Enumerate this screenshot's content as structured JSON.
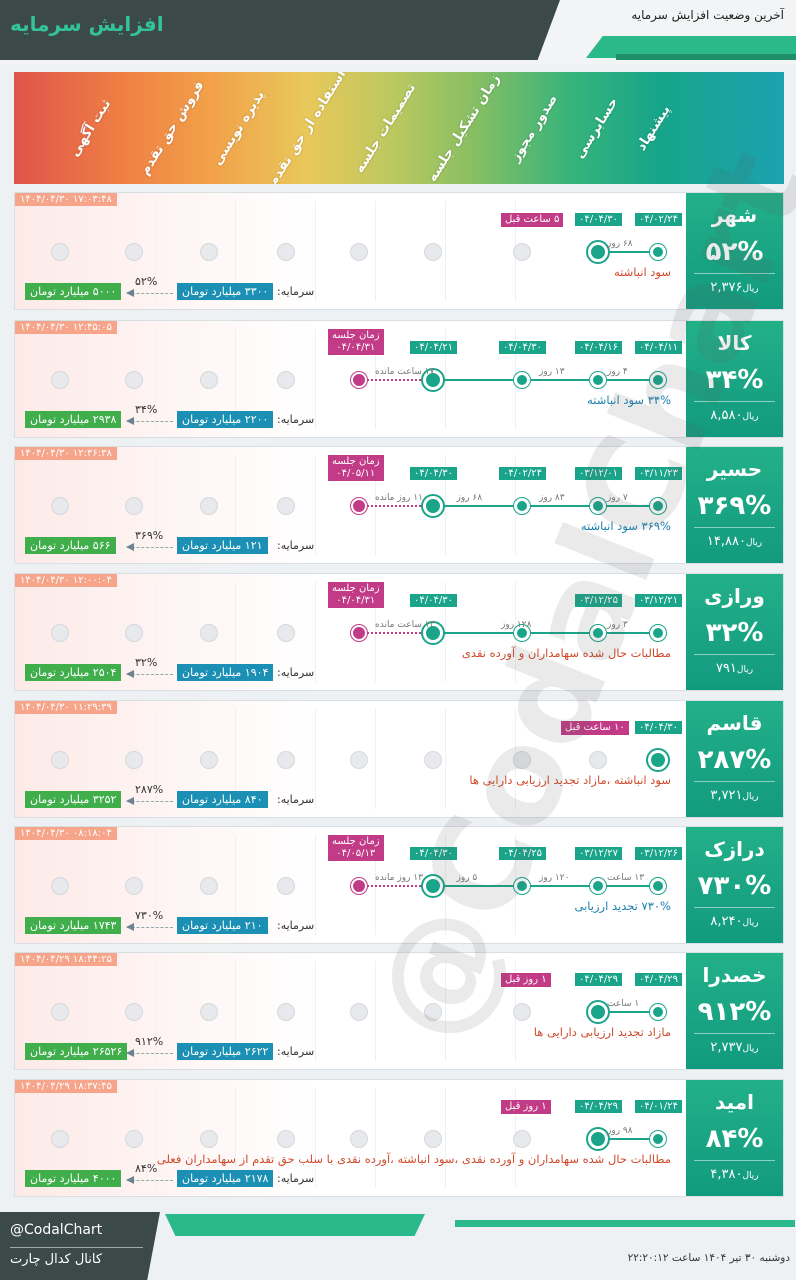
{
  "header": {
    "title": "افزایش سرمایه",
    "subtitle": "آخرین وضعیت افزایش سرمایه"
  },
  "stages": [
    "پیشنهاد",
    "حسابرسی",
    "صدور مجوز",
    "زمان تشکیل جلسه",
    "تصمیمات جلسه",
    "استفاده از حق تقدم",
    "پذیره نویسی",
    "فروش حق تقدم",
    "ثبت آگهی"
  ],
  "capital_prefix": "سرمایه:",
  "session_label": "زمان جلسه",
  "cards": [
    {
      "symbol": "شهر",
      "percent": "۵۲%",
      "price": "۲,۳۷۶",
      "price_unit": "ریال",
      "timestamp": "۱۴۰۴/۰۴/۳۰ ۱۷:۰۳:۴۸",
      "dates": [
        "۰۴/۰۲/۲۴",
        "۰۴/۰۴/۳۰"
      ],
      "days": [
        "۶۸ روز"
      ],
      "tag": "۵ ساعت قبل",
      "desc": "سود انباشته",
      "capital": "۳۳۰۰ میلیارد تومان",
      "new_capital": "۵۰۰۰ میلیارد تومان",
      "pct_small": "۵۲%"
    },
    {
      "symbol": "کالا",
      "percent": "۳۴%",
      "price": "۸,۵۸۰",
      "price_unit": "ریال",
      "timestamp": "۱۴۰۴/۰۴/۳۰ ۱۲:۴۵:۰۵",
      "dates": [
        "۰۴/۰۴/۱۱",
        "۰۴/۰۴/۱۶",
        "۰۴/۰۴/۳۰",
        "۰۴/۰۴/۲۱"
      ],
      "days": [
        "۴ روز",
        "۱۳ روز",
        "۱۷ ساعت مانده"
      ],
      "session": "۰۴/۰۴/۳۱",
      "desc": "۳۴% سود انباشته",
      "capital": "۲۲۰۰ میلیارد تومان",
      "new_capital": "۲۹۳۸ میلیارد تومان",
      "pct_small": "۳۴%"
    },
    {
      "symbol": "حسیر",
      "percent": "۳۶۹%",
      "price": "۱۴,۸۸۰",
      "price_unit": "ریال",
      "timestamp": "۱۴۰۴/۰۴/۳۰ ۱۲:۳۶:۳۸",
      "dates": [
        "۰۳/۱۱/۲۳",
        "۰۳/۱۲/۰۱",
        "۰۴/۰۲/۲۴",
        "۰۴/۰۴/۳۰"
      ],
      "days": [
        "۷ روز",
        "۸۳ روز",
        "۶۸ روز",
        "۱۱ روز مانده"
      ],
      "session": "۰۴/۰۵/۱۱",
      "desc": "۳۶۹% سود انباشته",
      "capital": "۱۲۱ میلیارد تومان",
      "new_capital": "۵۶۶ میلیارد تومان",
      "pct_small": "۳۶۹%"
    },
    {
      "symbol": "ورازی",
      "percent": "۳۲%",
      "price": "۷۹۱",
      "price_unit": "ریال",
      "timestamp": "۱۴۰۴/۰۴/۳۰ ۱۲:۰۰:۰۴",
      "dates": [
        "۰۳/۱۲/۲۱",
        "۰۳/۱۲/۲۵",
        "۰۴/۰۴/۳۰"
      ],
      "days": [
        "۳ روز",
        "۱۲۸ روز",
        "۱۳ ساعت مانده"
      ],
      "session": "۰۴/۰۴/۳۱",
      "desc": "مطالبات حال شده سهامداران و آورده نقدی",
      "capital": "۱۹۰۴ میلیارد تومان",
      "new_capital": "۲۵۰۴ میلیارد تومان",
      "pct_small": "۳۲%"
    },
    {
      "symbol": "قاسم",
      "percent": "۲۸۷%",
      "price": "۳,۷۲۱",
      "price_unit": "ریال",
      "timestamp": "۱۴۰۴/۰۴/۳۰ ۱۱:۲۹:۳۹",
      "dates": [
        "۰۴/۰۴/۳۰"
      ],
      "days": [],
      "tag": "۱۰ ساعت قبل",
      "desc": "سود انباشته ،مازاد تجدید ارزیابی دارایی ها",
      "capital": "۸۴۰ میلیارد تومان",
      "new_capital": "۳۲۵۲ میلیارد تومان",
      "pct_small": "۲۸۷%"
    },
    {
      "symbol": "درازک",
      "percent": "۷۳۰%",
      "price": "۸,۲۴۰",
      "price_unit": "ریال",
      "timestamp": "۱۴۰۴/۰۴/۳۰ ۰۸:۱۸:۰۴",
      "dates": [
        "۰۳/۱۲/۲۶",
        "۰۳/۱۲/۲۷",
        "۰۴/۰۴/۲۵",
        "۰۴/۰۴/۳۰"
      ],
      "days": [
        "۱۳ ساعت",
        "۱۲۰ روز",
        "۵ روز",
        "۱۳ روز مانده"
      ],
      "session": "۰۴/۰۵/۱۳",
      "desc": "۷۳۰% تجدید ارزیابی",
      "capital": "۲۱۰ میلیارد تومان",
      "new_capital": "۱۷۴۳ میلیارد تومان",
      "pct_small": "۷۳۰%"
    },
    {
      "symbol": "خصدرا",
      "percent": "۹۱۲%",
      "price": "۲,۷۳۷",
      "price_unit": "ریال",
      "timestamp": "۱۴۰۴/۰۴/۲۹ ۱۸:۴۴:۲۵",
      "dates": [
        "۰۴/۰۴/۲۹",
        "۰۴/۰۴/۲۹"
      ],
      "days": [
        "۱ ساعت"
      ],
      "tag": "۱ روز قبل",
      "desc": "مازاد تجدید ارزیابی دارایی ها",
      "capital": "۲۶۲۲ میلیارد تومان",
      "new_capital": "۲۶۵۲۶ میلیارد تومان",
      "pct_small": "۹۱۲%"
    },
    {
      "symbol": "امید",
      "percent": "۸۴%",
      "price": "۴,۳۸۰",
      "price_unit": "ریال",
      "timestamp": "۱۴۰۴/۰۴/۲۹ ۱۸:۳۷:۴۵",
      "dates": [
        "۰۴/۰۱/۲۴",
        "۰۴/۰۴/۲۹"
      ],
      "days": [
        "۹۸ روز"
      ],
      "tag": "۱ روز قبل",
      "desc": "مطالبات حال شده سهامداران و آورده نقدی ،سود انباشته ،آورده نقدی با سلب حق تقدم از سهامداران فعلی",
      "capital": "۲۱۷۸ میلیارد تومان",
      "new_capital": "۴۰۰۰ میلیارد تومان",
      "pct_small": "۸۴%"
    }
  ],
  "watermark": "@CodalChart",
  "footer": {
    "handle": "@CodalChart",
    "channel": "کانال کدال چارت",
    "date": "دوشنبه ۳۰ تیر ۱۴۰۴ ساعت ۲۲:۲۰:۱۲"
  }
}
